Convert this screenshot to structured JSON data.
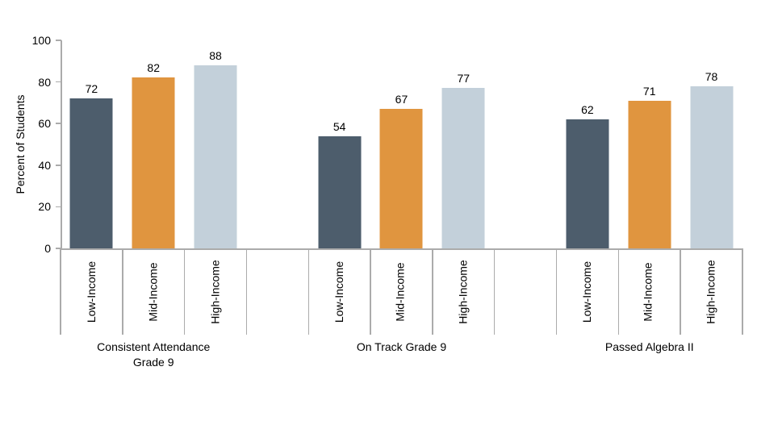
{
  "chart_data": {
    "type": "bar",
    "title": "",
    "ylabel": "Percent of Students",
    "ylim": [
      0,
      100
    ],
    "yticks": [
      0,
      20,
      40,
      60,
      80,
      100
    ],
    "grid": false,
    "legend": false,
    "data_labels": true,
    "series_labels": [
      "Low-Income",
      "Mid-Income",
      "High-Income"
    ],
    "series_colors": [
      "#4d5d6c",
      "#e0953f",
      "#c3d0da"
    ],
    "groups": [
      {
        "label": "Consistent Attendance Grade 9",
        "label_lines": [
          "Consistent Attendance",
          "Grade 9"
        ],
        "values": [
          72,
          82,
          88
        ]
      },
      {
        "label": "On Track Grade 9",
        "label_lines": [
          "On Track Grade 9"
        ],
        "values": [
          54,
          67,
          77
        ]
      },
      {
        "label": "Passed Algebra II",
        "label_lines": [
          "Passed Algebra II"
        ],
        "values": [
          62,
          71,
          78
        ]
      }
    ],
    "axis_line_color": "#ababab",
    "text_color": "#000000"
  }
}
